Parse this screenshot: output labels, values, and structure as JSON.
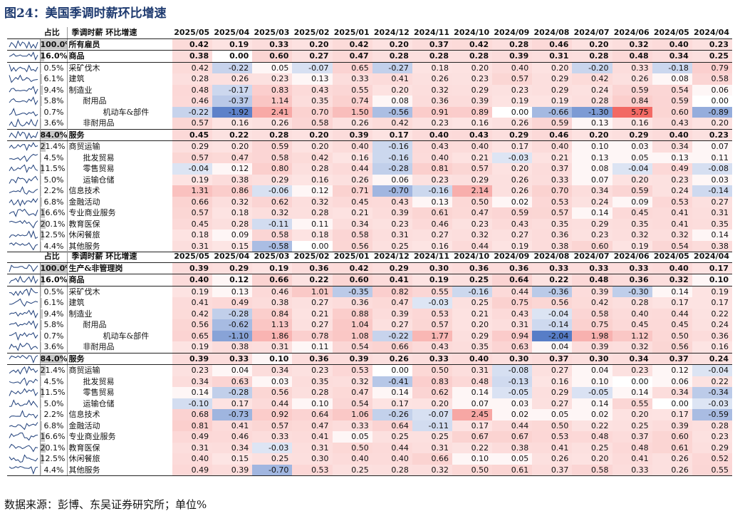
{
  "title": "图24：美国季调时薪环比增速",
  "source": "数据来源：彭博、东吴证券研究所；单位%",
  "chart_data": [
    {
      "type": "table",
      "title": "季调时薪 环比增速",
      "header_weight": "占比",
      "header_name": "季调时薪 环比增速",
      "columns": [
        "2025/05",
        "2025/04",
        "2025/03",
        "2025/02",
        "2025/01",
        "2024/12",
        "2024/11",
        "2024/10",
        "2024/09",
        "2024/08",
        "2024/07",
        "2024/06",
        "2024/05",
        "2024/04"
      ],
      "rows": [
        {
          "weight": "100.0%",
          "name": "所有雇员",
          "level": 0,
          "values": [
            0.42,
            0.19,
            0.33,
            0.2,
            0.42,
            0.2,
            0.37,
            0.42,
            0.28,
            0.46,
            0.2,
            0.32,
            0.4,
            0.23
          ]
        },
        {
          "weight": "16.0%",
          "name": "商品",
          "level": 0,
          "values": [
            0.38,
            0.0,
            0.6,
            0.27,
            0.47,
            0.28,
            0.28,
            0.28,
            0.39,
            0.31,
            0.28,
            0.48,
            0.34,
            0.25
          ]
        },
        {
          "weight": "0.5%",
          "name": "采矿伐木",
          "level": 1,
          "values": [
            0.42,
            -0.22,
            0.05,
            -0.07,
            0.65,
            -0.27,
            0.18,
            0.2,
            0.4,
            0.2,
            -0.2,
            0.33,
            -0.18,
            0.79
          ]
        },
        {
          "weight": "6.1%",
          "name": "建筑",
          "level": 1,
          "values": [
            0.28,
            0.26,
            0.23,
            0.13,
            0.33,
            0.41,
            0.26,
            0.23,
            0.57,
            0.29,
            0.42,
            0.26,
            0.08,
            0.58
          ]
        },
        {
          "weight": "9.4%",
          "name": "制造业",
          "level": 1,
          "values": [
            0.48,
            -0.17,
            0.83,
            0.43,
            0.55,
            0.2,
            0.32,
            0.29,
            0.23,
            0.29,
            0.24,
            0.59,
            0.54,
            0.06
          ]
        },
        {
          "weight": "5.8%",
          "name": "耐用品",
          "level": 2,
          "values": [
            0.46,
            -0.37,
            1.14,
            0.35,
            0.74,
            0.08,
            0.36,
            0.39,
            0.19,
            0.19,
            0.28,
            0.84,
            0.59,
            0.0
          ]
        },
        {
          "weight": "0.7%",
          "name": "机动车&部件",
          "level": 3,
          "values": [
            -0.22,
            -1.92,
            2.41,
            0.7,
            1.5,
            -0.56,
            0.91,
            0.89,
            0.0,
            -0.66,
            -1.3,
            5.75,
            0.6,
            -0.89
          ]
        },
        {
          "weight": "3.6%",
          "name": "非耐用品",
          "level": 2,
          "values": [
            0.57,
            0.16,
            0.26,
            0.58,
            0.26,
            0.42,
            0.23,
            0.16,
            0.26,
            0.59,
            0.13,
            0.16,
            0.43,
            0.2
          ]
        },
        {
          "weight": "84.0%",
          "name": "服务",
          "level": 0,
          "section": true,
          "values": [
            0.45,
            0.22,
            0.28,
            0.2,
            0.39,
            0.17,
            0.4,
            0.43,
            0.29,
            0.46,
            0.2,
            0.29,
            0.4,
            0.23
          ]
        },
        {
          "weight": "21.4%",
          "name": "商贸运输",
          "level": 1,
          "values": [
            0.29,
            0.2,
            0.59,
            0.2,
            0.4,
            -0.16,
            0.43,
            0.4,
            0.17,
            0.4,
            0.1,
            0.03,
            0.34,
            0.07
          ]
        },
        {
          "weight": "4.5%",
          "name": "批发贸易",
          "level": 2,
          "values": [
            0.57,
            0.47,
            0.58,
            0.42,
            0.16,
            -0.16,
            0.4,
            0.21,
            -0.03,
            0.21,
            0.13,
            0.05,
            0.13,
            0.11
          ]
        },
        {
          "weight": "11.5%",
          "name": "零售贸易",
          "level": 2,
          "values": [
            -0.04,
            0.12,
            0.8,
            0.28,
            0.44,
            -0.28,
            0.81,
            0.57,
            0.2,
            0.37,
            0.08,
            -0.04,
            0.49,
            -0.08
          ]
        },
        {
          "weight": "5.0%",
          "name": "运输仓储",
          "level": 2,
          "values": [
            0.19,
            0.38,
            0.29,
            0.16,
            0.26,
            0.06,
            0.23,
            0.29,
            0.26,
            0.33,
            0.07,
            0.2,
            0.23,
            0.03
          ]
        },
        {
          "weight": "2.2%",
          "name": "信息技术",
          "level": 1,
          "values": [
            1.31,
            0.86,
            -0.06,
            0.12,
            0.71,
            -0.7,
            -0.16,
            2.14,
            0.26,
            0.7,
            0.34,
            0.59,
            0.24,
            -0.14
          ]
        },
        {
          "weight": "6.8%",
          "name": "金融活动",
          "level": 1,
          "values": [
            0.66,
            0.32,
            0.62,
            0.32,
            0.45,
            0.43,
            0.13,
            0.5,
            0.02,
            0.53,
            0.24,
            0.09,
            0.53,
            0.27
          ]
        },
        {
          "weight": "16.6%",
          "name": "专业商业服务",
          "level": 1,
          "values": [
            0.57,
            0.18,
            0.32,
            0.28,
            0.21,
            0.39,
            0.61,
            0.47,
            0.59,
            0.57,
            0.14,
            0.45,
            0.41,
            0.31
          ]
        },
        {
          "weight": "20.1%",
          "name": "教育医保",
          "level": 1,
          "values": [
            0.45,
            0.28,
            -0.11,
            0.11,
            0.34,
            0.23,
            0.46,
            0.23,
            0.43,
            0.35,
            0.29,
            0.35,
            0.41,
            0.35
          ]
        },
        {
          "weight": "12.5%",
          "name": "休闲餐旅",
          "level": 1,
          "values": [
            0.18,
            0.09,
            0.58,
            0.18,
            0.58,
            0.31,
            0.27,
            0.32,
            0.27,
            0.36,
            0.23,
            0.32,
            0.32,
            0.14
          ]
        },
        {
          "weight": "4.4%",
          "name": "其他服务",
          "level": 1,
          "values": [
            0.31,
            0.15,
            -0.58,
            0.0,
            0.56,
            0.25,
            0.16,
            0.44,
            0.19,
            0.38,
            0.6,
            0.19,
            0.54,
            0.38
          ]
        }
      ]
    },
    {
      "type": "table",
      "title": "季调时薪 环比增速",
      "header_weight": "占比",
      "header_name": "季调时薪 环比增速",
      "columns": [
        "2025/05",
        "2025/04",
        "2025/03",
        "2025/02",
        "2025/01",
        "2024/12",
        "2024/11",
        "2024/10",
        "2024/09",
        "2024/08",
        "2024/07",
        "2024/06",
        "2024/05",
        "2024/04"
      ],
      "rows": [
        {
          "weight": "100.0%",
          "name": "生产&非管理岗",
          "level": 0,
          "values": [
            0.39,
            0.29,
            0.19,
            0.36,
            0.42,
            0.29,
            0.3,
            0.36,
            0.36,
            0.33,
            0.33,
            0.33,
            0.4,
            0.17
          ]
        },
        {
          "weight": "16.0%",
          "name": "商品",
          "level": 0,
          "values": [
            0.4,
            0.12,
            0.66,
            0.22,
            0.6,
            0.41,
            0.19,
            0.25,
            0.64,
            0.22,
            0.48,
            0.36,
            0.32,
            0.1
          ]
        },
        {
          "weight": "0.5%",
          "name": "采矿伐木",
          "level": 1,
          "values": [
            0.19,
            0.13,
            0.46,
            1.01,
            -0.35,
            0.82,
            0.55,
            -0.16,
            0.44,
            -0.36,
            0.39,
            -0.3,
            0.14,
            0.19
          ]
        },
        {
          "weight": "6.1%",
          "name": "建筑",
          "level": 1,
          "values": [
            0.41,
            0.49,
            0.38,
            0.27,
            0.36,
            0.47,
            -0.03,
            0.25,
            0.75,
            0.56,
            0.42,
            0.28,
            0.17,
            0.17
          ]
        },
        {
          "weight": "9.4%",
          "name": "制造业",
          "level": 1,
          "values": [
            0.42,
            -0.28,
            0.84,
            0.21,
            0.88,
            0.39,
            0.53,
            0.21,
            0.43,
            -0.04,
            0.58,
            0.4,
            0.44,
            0.22
          ]
        },
        {
          "weight": "5.8%",
          "name": "耐用品",
          "level": 2,
          "values": [
            0.56,
            -0.62,
            1.13,
            0.27,
            1.04,
            0.27,
            0.57,
            0.2,
            0.31,
            -0.14,
            0.75,
            0.45,
            0.45,
            0.24
          ]
        },
        {
          "weight": "0.7%",
          "name": "机动车&部件",
          "level": 3,
          "values": [
            0.65,
            -1.1,
            1.86,
            0.78,
            1.08,
            -0.22,
            1.77,
            0.29,
            0.94,
            -2.04,
            1.98,
            1.12,
            0.5,
            0.36
          ]
        },
        {
          "weight": "3.6%",
          "name": "非耐用品",
          "level": 2,
          "values": [
            0.19,
            0.38,
            0.31,
            0.11,
            0.54,
            0.66,
            0.43,
            0.35,
            0.63,
            0.04,
            0.39,
            0.32,
            0.56,
            0.16
          ]
        },
        {
          "weight": "84.0%",
          "name": "服务",
          "level": 0,
          "section": true,
          "values": [
            0.39,
            0.33,
            0.1,
            0.36,
            0.39,
            0.26,
            0.33,
            0.4,
            0.3,
            0.37,
            0.3,
            0.34,
            0.37,
            0.24
          ]
        },
        {
          "weight": "21.4%",
          "name": "商贸运输",
          "level": 1,
          "values": [
            0.23,
            0.04,
            0.34,
            0.23,
            0.53,
            0.0,
            0.5,
            0.31,
            -0.08,
            0.27,
            0.04,
            0.23,
            0.12,
            -0.04
          ]
        },
        {
          "weight": "4.5%",
          "name": "批发贸易",
          "level": 2,
          "values": [
            0.34,
            0.63,
            0.03,
            0.35,
            0.32,
            -0.41,
            0.83,
            0.48,
            -0.13,
            0.16,
            0.1,
            0.0,
            0.06,
            0.22
          ]
        },
        {
          "weight": "11.5%",
          "name": "零售贸易",
          "level": 2,
          "values": [
            0.14,
            -0.28,
            0.56,
            0.28,
            0.47,
            0.14,
            0.62,
            0.14,
            -0.05,
            0.29,
            -0.05,
            0.14,
            0.34,
            -0.34
          ]
        },
        {
          "weight": "5.0%",
          "name": "运输仓储",
          "level": 2,
          "values": [
            -0.1,
            0.17,
            0.44,
            0.1,
            0.54,
            0.17,
            0.2,
            0.07,
            0.03,
            0.27,
            0.14,
            0.55,
            0.0,
            -0.03
          ]
        },
        {
          "weight": "2.2%",
          "name": "信息技术",
          "level": 1,
          "values": [
            0.68,
            -0.73,
            0.92,
            0.64,
            1.06,
            -0.26,
            -0.07,
            2.45,
            0.02,
            0.05,
            0.02,
            0.2,
            0.17,
            -0.59
          ]
        },
        {
          "weight": "6.8%",
          "name": "金融活动",
          "level": 1,
          "values": [
            0.81,
            0.41,
            0.57,
            0.47,
            0.33,
            0.64,
            -0.11,
            0.17,
            0.44,
            0.5,
            0.22,
            0.25,
            0.39,
            0.28
          ]
        },
        {
          "weight": "16.6%",
          "name": "专业商业服务",
          "level": 1,
          "values": [
            0.49,
            0.46,
            0.33,
            0.41,
            0.05,
            0.25,
            0.25,
            0.67,
            0.67,
            0.53,
            0.48,
            0.37,
            0.6,
            0.23
          ]
        },
        {
          "weight": "20.1%",
          "name": "教育医保",
          "level": 1,
          "values": [
            0.31,
            0.34,
            -0.03,
            0.31,
            0.5,
            0.44,
            0.31,
            0.22,
            0.38,
            0.41,
            0.25,
            0.48,
            0.61,
            0.29
          ]
        },
        {
          "weight": "12.5%",
          "name": "休闲餐旅",
          "level": 1,
          "values": [
            0.4,
            0.15,
            0.25,
            0.3,
            0.4,
            0.4,
            0.66,
            0.1,
            0.05,
            0.26,
            0.2,
            0.41,
            0.26,
            0.52
          ]
        },
        {
          "weight": "4.4%",
          "name": "其他服务",
          "level": 1,
          "values": [
            0.49,
            0.39,
            -0.7,
            0.53,
            0.25,
            0.28,
            0.32,
            0.5,
            0.61,
            0.37,
            0.58,
            0.33,
            0.26,
            0.55
          ]
        }
      ]
    }
  ]
}
